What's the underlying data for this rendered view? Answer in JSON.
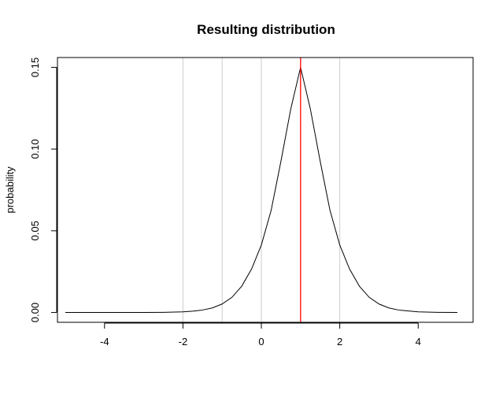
{
  "chart_data": {
    "type": "line",
    "title": "Resulting distribution",
    "xlabel": "",
    "ylabel": "probability",
    "xlim": [
      -5.2,
      5.4
    ],
    "ylim": [
      -0.006,
      0.156
    ],
    "x_ticks": [
      -4,
      -2,
      0,
      2,
      4
    ],
    "x_tick_labels": [
      "-4",
      "-2",
      "0",
      "2",
      "4"
    ],
    "y_ticks": [
      0.0,
      0.05,
      0.1,
      0.15
    ],
    "y_tick_labels": [
      "0.00",
      "0.05",
      "0.10",
      "0.15"
    ],
    "grid_vertical_lines": [
      -2,
      -1,
      0,
      1,
      2
    ],
    "grid_color": "#cccccc",
    "marker_line": {
      "x": 1,
      "color": "#ff0000"
    },
    "series": [
      {
        "color": "#000000",
        "x": [
          -5,
          -4.5,
          -4,
          -3.5,
          -3,
          -2.5,
          -2,
          -1.75,
          -1.5,
          -1.25,
          -1,
          -0.75,
          -0.5,
          -0.25,
          0,
          0.25,
          0.5,
          0.75,
          1,
          1.25,
          1.5,
          1.75,
          2,
          2.25,
          2.5,
          2.75,
          3,
          3.25,
          3.5,
          4,
          4.5,
          5
        ],
        "y": [
          0.0,
          0.0,
          0.0,
          0.0,
          0.0,
          0.0001,
          0.0004,
          0.0008,
          0.0015,
          0.0028,
          0.0052,
          0.0093,
          0.0161,
          0.0266,
          0.0413,
          0.0625,
          0.0926,
          0.1245,
          0.15,
          0.1245,
          0.0926,
          0.0625,
          0.0413,
          0.0266,
          0.0161,
          0.0093,
          0.0052,
          0.0028,
          0.0015,
          0.0004,
          0.0001,
          0.0
        ]
      }
    ]
  }
}
